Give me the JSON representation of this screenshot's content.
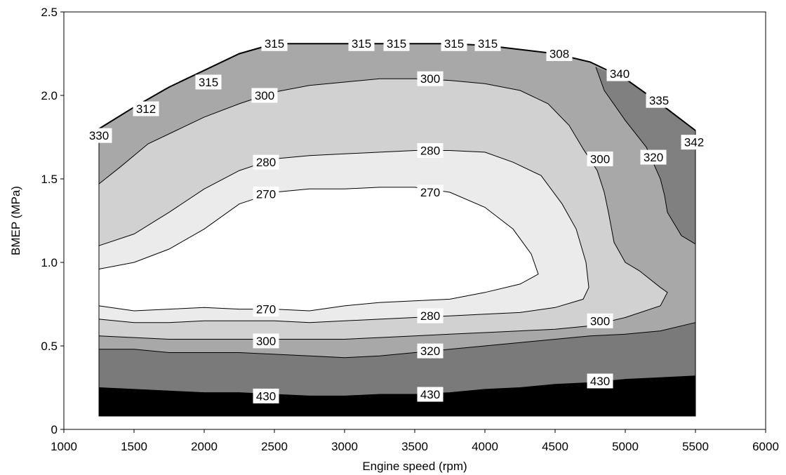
{
  "chart_data": {
    "type": "contour",
    "title": "",
    "xlabel": "Engine speed (rpm)",
    "ylabel": "BMEP (MPa)",
    "xlim": [
      1000,
      6000
    ],
    "ylim": [
      0,
      2.5
    ],
    "x_ticks": [
      "1000",
      "1500",
      "2000",
      "2500",
      "3000",
      "3500",
      "4000",
      "4500",
      "5000",
      "5500",
      "6000"
    ],
    "y_ticks": [
      "0",
      "0.5",
      "1.0",
      "1.5",
      "2.0",
      "2.5"
    ],
    "x_tick_values": [
      1000,
      1500,
      2000,
      2500,
      3000,
      3500,
      4000,
      4500,
      5000,
      5500,
      6000
    ],
    "y_tick_values": [
      0,
      0.5,
      1.0,
      1.5,
      2.0,
      2.5
    ],
    "grid": false,
    "fill_colors": {
      "bsfc_430_band": "#000000",
      "bsfc_320_430_band": "#7a7a7a",
      "bsfc_300_320_band": "#a8a8a8",
      "bsfc_280_300_band": "#d1d1d1",
      "bsfc_270_280_band": "#ebebeb",
      "bsfc_below_270": "#ffffff",
      "high_right_320_region": "#808080"
    },
    "regions": {
      "speed_range": [
        1250,
        5500
      ],
      "bottom_bmep": 0.08,
      "max_load_curve": [
        [
          1250,
          1.79
        ],
        [
          1250,
          1.8
        ],
        [
          1500,
          1.93
        ],
        [
          1750,
          2.05
        ],
        [
          2000,
          2.15
        ],
        [
          2250,
          2.25
        ],
        [
          2500,
          2.31
        ],
        [
          3750,
          2.31
        ],
        [
          4000,
          2.3
        ],
        [
          4500,
          2.25
        ],
        [
          4750,
          2.2
        ],
        [
          5000,
          2.1
        ],
        [
          5250,
          1.95
        ],
        [
          5500,
          1.79
        ]
      ],
      "high_right_320": [
        [
          4790,
          2.17
        ],
        [
          4850,
          2.03
        ],
        [
          5000,
          1.85
        ],
        [
          5150,
          1.69
        ],
        [
          5250,
          1.5
        ],
        [
          5280,
          1.4
        ],
        [
          5300,
          1.3
        ],
        [
          5400,
          1.16
        ],
        [
          5500,
          1.11
        ],
        [
          5500,
          1.79
        ],
        [
          5250,
          1.95
        ],
        [
          5000,
          2.1
        ],
        [
          4790,
          2.17
        ]
      ]
    },
    "contours": [
      {
        "level": 300,
        "points": [
          [
            1250,
            1.47
          ],
          [
            1400,
            1.57
          ],
          [
            1600,
            1.71
          ],
          [
            1800,
            1.79
          ],
          [
            2000,
            1.87
          ],
          [
            2250,
            1.95
          ],
          [
            2500,
            2.02
          ],
          [
            2750,
            2.06
          ],
          [
            3000,
            2.08
          ],
          [
            3250,
            2.1
          ],
          [
            3500,
            2.1
          ],
          [
            3750,
            2.09
          ],
          [
            4000,
            2.07
          ],
          [
            4250,
            2.03
          ],
          [
            4450,
            1.95
          ],
          [
            4600,
            1.82
          ],
          [
            4700,
            1.68
          ],
          [
            4800,
            1.55
          ],
          [
            4850,
            1.42
          ],
          [
            4880,
            1.3
          ],
          [
            4920,
            1.12
          ],
          [
            5000,
            1.0
          ],
          [
            5100,
            0.95
          ],
          [
            5250,
            0.85
          ],
          [
            5300,
            0.82
          ],
          [
            5250,
            0.74
          ],
          [
            5000,
            0.67
          ],
          [
            4750,
            0.62
          ],
          [
            4500,
            0.6
          ],
          [
            4250,
            0.59
          ],
          [
            4000,
            0.58
          ],
          [
            3750,
            0.57
          ],
          [
            3500,
            0.56
          ],
          [
            3250,
            0.55
          ],
          [
            3000,
            0.54
          ],
          [
            2750,
            0.54
          ],
          [
            2500,
            0.54
          ],
          [
            2250,
            0.54
          ],
          [
            2000,
            0.54
          ],
          [
            1750,
            0.54
          ],
          [
            1500,
            0.55
          ],
          [
            1250,
            0.56
          ]
        ]
      },
      {
        "level": 280,
        "points": [
          [
            1250,
            1.1
          ],
          [
            1500,
            1.17
          ],
          [
            1750,
            1.3
          ],
          [
            2000,
            1.44
          ],
          [
            2250,
            1.55
          ],
          [
            2500,
            1.62
          ],
          [
            2750,
            1.64
          ],
          [
            3000,
            1.65
          ],
          [
            3250,
            1.66
          ],
          [
            3500,
            1.67
          ],
          [
            3750,
            1.67
          ],
          [
            4000,
            1.66
          ],
          [
            4200,
            1.6
          ],
          [
            4400,
            1.52
          ],
          [
            4550,
            1.35
          ],
          [
            4650,
            1.2
          ],
          [
            4720,
            1.0
          ],
          [
            4740,
            0.85
          ],
          [
            4700,
            0.78
          ],
          [
            4500,
            0.73
          ],
          [
            4250,
            0.7
          ],
          [
            4000,
            0.69
          ],
          [
            3750,
            0.68
          ],
          [
            3500,
            0.67
          ],
          [
            3250,
            0.66
          ],
          [
            3000,
            0.65
          ],
          [
            2750,
            0.64
          ],
          [
            2500,
            0.65
          ],
          [
            2250,
            0.65
          ],
          [
            2000,
            0.65
          ],
          [
            1750,
            0.64
          ],
          [
            1500,
            0.64
          ],
          [
            1250,
            0.66
          ]
        ]
      },
      {
        "level": 270,
        "points": [
          [
            1250,
            0.96
          ],
          [
            1500,
            1.0
          ],
          [
            1750,
            1.08
          ],
          [
            2000,
            1.2
          ],
          [
            2250,
            1.35
          ],
          [
            2500,
            1.42
          ],
          [
            2750,
            1.44
          ],
          [
            3000,
            1.44
          ],
          [
            3250,
            1.45
          ],
          [
            3500,
            1.45
          ],
          [
            3750,
            1.42
          ],
          [
            4000,
            1.33
          ],
          [
            4200,
            1.2
          ],
          [
            4330,
            1.05
          ],
          [
            4380,
            0.93
          ],
          [
            4250,
            0.87
          ],
          [
            4000,
            0.82
          ],
          [
            3750,
            0.78
          ],
          [
            3500,
            0.77
          ],
          [
            3250,
            0.76
          ],
          [
            3000,
            0.74
          ],
          [
            2750,
            0.71
          ],
          [
            2500,
            0.72
          ],
          [
            2250,
            0.72
          ],
          [
            2000,
            0.73
          ],
          [
            1750,
            0.72
          ],
          [
            1500,
            0.71
          ],
          [
            1250,
            0.74
          ]
        ]
      },
      {
        "level": 320,
        "points": [
          [
            1250,
            0.48
          ],
          [
            1500,
            0.48
          ],
          [
            1750,
            0.46
          ],
          [
            2000,
            0.46
          ],
          [
            2250,
            0.46
          ],
          [
            2500,
            0.45
          ],
          [
            2750,
            0.44
          ],
          [
            3000,
            0.43
          ],
          [
            3250,
            0.44
          ],
          [
            3500,
            0.46
          ],
          [
            3750,
            0.48
          ],
          [
            4000,
            0.5
          ],
          [
            4250,
            0.52
          ],
          [
            4500,
            0.54
          ],
          [
            4750,
            0.56
          ],
          [
            5000,
            0.57
          ],
          [
            5250,
            0.59
          ],
          [
            5500,
            0.64
          ]
        ]
      },
      {
        "level": 430,
        "points": [
          [
            1250,
            0.25
          ],
          [
            1500,
            0.24
          ],
          [
            1750,
            0.23
          ],
          [
            2000,
            0.22
          ],
          [
            2250,
            0.22
          ],
          [
            2500,
            0.21
          ],
          [
            2750,
            0.2
          ],
          [
            3000,
            0.2
          ],
          [
            3250,
            0.21
          ],
          [
            3500,
            0.21
          ],
          [
            3750,
            0.22
          ],
          [
            4000,
            0.24
          ],
          [
            4250,
            0.25
          ],
          [
            4500,
            0.27
          ],
          [
            4750,
            0.28
          ],
          [
            5000,
            0.3
          ],
          [
            5250,
            0.31
          ],
          [
            5500,
            0.32
          ]
        ]
      }
    ],
    "contour_labels": [
      {
        "text": "330",
        "x": 1250,
        "y": 1.76
      },
      {
        "text": "312",
        "x": 1585,
        "y": 1.92
      },
      {
        "text": "315",
        "x": 2030,
        "y": 2.08
      },
      {
        "text": "315",
        "x": 2500,
        "y": 2.31
      },
      {
        "text": "315",
        "x": 3120,
        "y": 2.31
      },
      {
        "text": "315",
        "x": 3370,
        "y": 2.31
      },
      {
        "text": "315",
        "x": 3780,
        "y": 2.31
      },
      {
        "text": "315",
        "x": 4020,
        "y": 2.31
      },
      {
        "text": "308",
        "x": 4530,
        "y": 2.25
      },
      {
        "text": "340",
        "x": 4960,
        "y": 2.13
      },
      {
        "text": "335",
        "x": 5240,
        "y": 1.97
      },
      {
        "text": "342",
        "x": 5490,
        "y": 1.72
      },
      {
        "text": "300",
        "x": 2430,
        "y": 2.0
      },
      {
        "text": "300",
        "x": 3610,
        "y": 2.1
      },
      {
        "text": "280",
        "x": 2440,
        "y": 1.6
      },
      {
        "text": "280",
        "x": 3610,
        "y": 1.67
      },
      {
        "text": "270",
        "x": 2440,
        "y": 1.41
      },
      {
        "text": "270",
        "x": 3610,
        "y": 1.42
      },
      {
        "text": "300",
        "x": 4820,
        "y": 1.62
      },
      {
        "text": "320",
        "x": 5200,
        "y": 1.63
      },
      {
        "text": "270",
        "x": 2440,
        "y": 0.72
      },
      {
        "text": "280",
        "x": 3610,
        "y": 0.68
      },
      {
        "text": "300",
        "x": 2440,
        "y": 0.53
      },
      {
        "text": "320",
        "x": 3610,
        "y": 0.47
      },
      {
        "text": "300",
        "x": 4820,
        "y": 0.65
      },
      {
        "text": "430",
        "x": 2440,
        "y": 0.2
      },
      {
        "text": "430",
        "x": 3610,
        "y": 0.21
      },
      {
        "text": "430",
        "x": 4820,
        "y": 0.29
      }
    ]
  }
}
